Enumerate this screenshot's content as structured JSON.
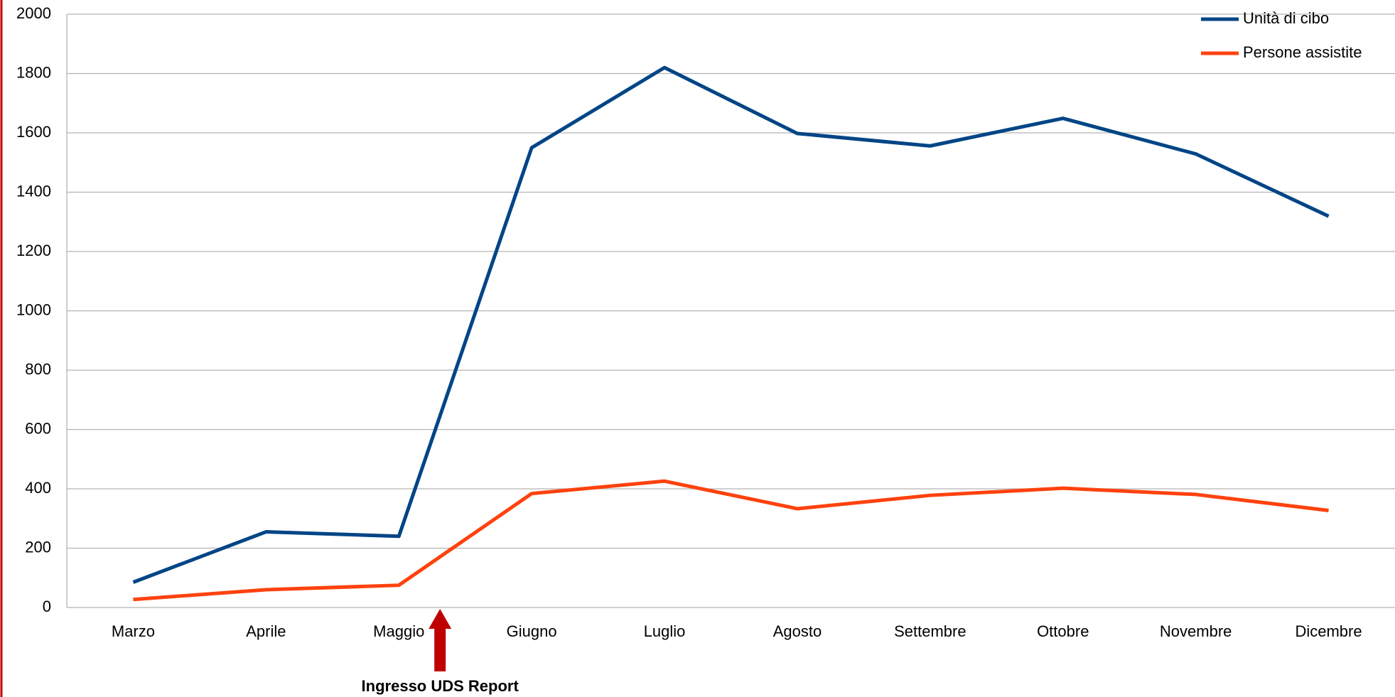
{
  "chart_data": {
    "type": "line",
    "categories": [
      "Marzo",
      "Aprile",
      "Maggio",
      "Giugno",
      "Luglio",
      "Agosto",
      "Settembre",
      "Ottobre",
      "Novembre",
      "Dicembre"
    ],
    "series": [
      {
        "name": "Unità di cibo",
        "color": "#004586",
        "values": [
          85,
          255,
          240,
          1550,
          1820,
          1598,
          1556,
          1649,
          1529,
          1319
        ]
      },
      {
        "name": "Persone assistite",
        "color": "#ff420e",
        "values": [
          27,
          60,
          75,
          384,
          426,
          333,
          378,
          402,
          381,
          327
        ]
      }
    ],
    "ylim": [
      0,
      2000
    ],
    "yticks": [
      0,
      200,
      400,
      600,
      800,
      1000,
      1200,
      1400,
      1600,
      1800,
      2000
    ],
    "grid": true,
    "legend": "upper right",
    "annotation": "Ingresso UDS Report"
  }
}
